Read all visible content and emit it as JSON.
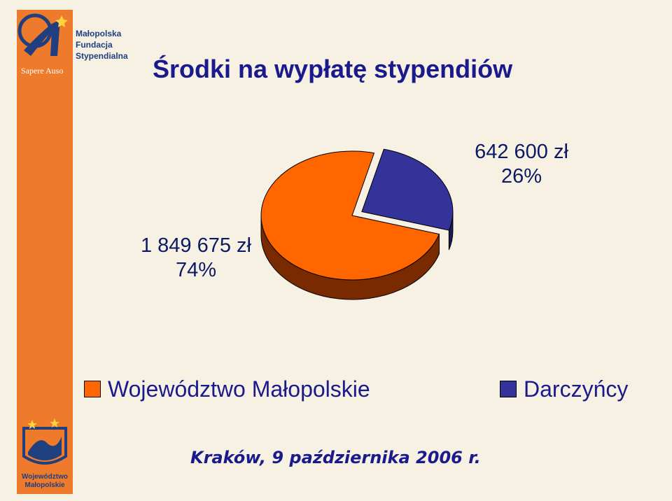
{
  "title": "Środki na wypłatę stypendiów",
  "logo": {
    "lines": [
      "Małopolska",
      "Fundacja",
      "Stypendialna"
    ],
    "motto": "Sapere Auso"
  },
  "region_logo": {
    "lines": [
      "Województwo",
      "Małopolskie"
    ]
  },
  "colors": {
    "background": "#f7f1e3",
    "sidebar": "#ee7a2c",
    "title": "#1a1a8c",
    "slice_woj": "#ff6600",
    "slice_dar": "#333399"
  },
  "chart_data": {
    "type": "pie",
    "categories": [
      "Województwo Małopolskie",
      "Darczyńcy"
    ],
    "values": [
      1849675,
      642600
    ],
    "percent": [
      74,
      26
    ],
    "labels": [
      {
        "value": "1 849 675 zł",
        "percent": "74%"
      },
      {
        "value": "642 600 zł",
        "percent": "26%"
      }
    ],
    "legend": "bottom"
  },
  "footer": "Kraków, 9 października 2006 r."
}
